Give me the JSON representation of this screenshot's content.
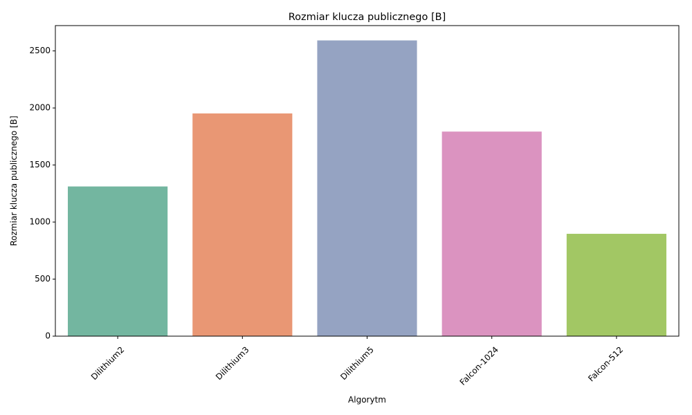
{
  "chart_data": {
    "type": "bar",
    "title": "Rozmiar klucza publicznego [B]",
    "xlabel": "Algorytm",
    "ylabel": "Rozmiar klucza publicznego [B]",
    "categories": [
      "Dilithium2",
      "Dilithium3",
      "Dilithium5",
      "Falcon-1024",
      "Falcon-512"
    ],
    "values": [
      1312,
      1952,
      2592,
      1793,
      897
    ],
    "colors": [
      "#73b6a0",
      "#e99774",
      "#95a3c2",
      "#db93c0",
      "#a2c764"
    ],
    "ylim": [
      0,
      2722
    ],
    "yticks": [
      0,
      500,
      1000,
      1500,
      2000,
      2500
    ],
    "ytick_labels": [
      "0",
      "500",
      "1000",
      "1500",
      "2000",
      "2500"
    ],
    "grid": false,
    "legend": null
  }
}
